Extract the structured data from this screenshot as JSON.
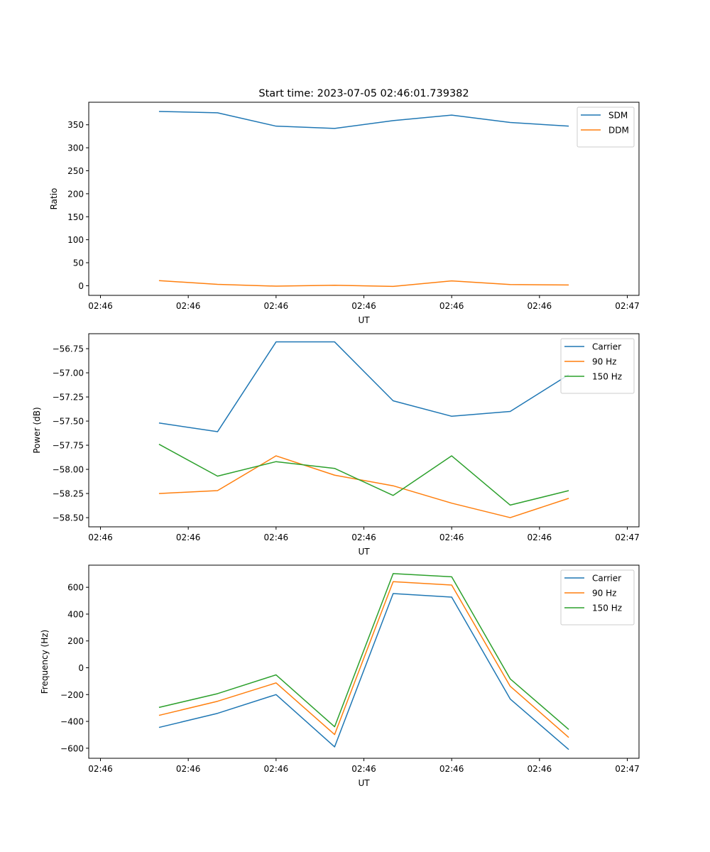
{
  "figure_title": "Start time: 2023-07-05 02:46:01.739382",
  "colors": {
    "blue": "#1f77b4",
    "orange": "#ff7f0e",
    "green": "#2ca02c"
  },
  "chart_data": [
    {
      "type": "line",
      "title": "Start time: 2023-07-05 02:46:01.739382",
      "xlabel": "UT",
      "ylabel": "Ratio",
      "x": [
        1,
        2,
        3,
        4,
        5,
        6,
        7,
        8
      ],
      "xlim": [
        -0.2,
        9.2
      ],
      "xticks": [
        0,
        1.5,
        3,
        4.5,
        6,
        7.5,
        9
      ],
      "xtick_labels": [
        "02:46",
        "02:46",
        "02:46",
        "02:46",
        "02:46",
        "02:46",
        "02:47"
      ],
      "ylim": [
        -21,
        399
      ],
      "yticks": [
        0,
        50,
        100,
        150,
        200,
        250,
        300,
        350
      ],
      "ytick_labels": [
        "0",
        "50",
        "100",
        "150",
        "200",
        "250",
        "300",
        "350"
      ],
      "legend_position": "top-right",
      "series": [
        {
          "name": "SDM",
          "color": "#1f77b4",
          "values": [
            379,
            376,
            347,
            342,
            359,
            371,
            355,
            347
          ]
        },
        {
          "name": "DDM",
          "color": "#ff7f0e",
          "values": [
            11,
            3,
            -1,
            1,
            -1.5,
            10.5,
            2.5,
            1.5
          ]
        }
      ]
    },
    {
      "type": "line",
      "title": "",
      "xlabel": "UT",
      "ylabel": "Power (dB)",
      "x": [
        1,
        2,
        3,
        4,
        5,
        6,
        7,
        8
      ],
      "xlim": [
        -0.2,
        9.2
      ],
      "xticks": [
        0,
        1.5,
        3,
        4.5,
        6,
        7.5,
        9
      ],
      "xtick_labels": [
        "02:46",
        "02:46",
        "02:46",
        "02:46",
        "02:46",
        "02:46",
        "02:47"
      ],
      "ylim": [
        -58.595,
        -56.595
      ],
      "yticks": [
        -58.5,
        -58.25,
        -58.0,
        -57.75,
        -57.5,
        -57.25,
        -57.0,
        -56.75
      ],
      "ytick_labels": [
        "−58.50",
        "−58.25",
        "−58.00",
        "−57.75",
        "−57.50",
        "−57.25",
        "−57.00",
        "−56.75"
      ],
      "legend_position": "top-right",
      "series": [
        {
          "name": "Carrier",
          "color": "#1f77b4",
          "values": [
            -57.52,
            -57.61,
            -56.68,
            -56.68,
            -57.29,
            -57.45,
            -57.4,
            -57.02
          ]
        },
        {
          "name": "90 Hz",
          "color": "#ff7f0e",
          "values": [
            -58.25,
            -58.22,
            -57.86,
            -58.06,
            -58.17,
            -58.35,
            -58.5,
            -58.3
          ]
        },
        {
          "name": "150 Hz",
          "color": "#2ca02c",
          "values": [
            -57.74,
            -58.07,
            -57.92,
            -57.99,
            -58.27,
            -57.86,
            -58.37,
            -58.22
          ]
        }
      ]
    },
    {
      "type": "line",
      "title": "",
      "xlabel": "UT",
      "ylabel": "Frequency (Hz)",
      "x": [
        1,
        2,
        3,
        4,
        5,
        6,
        7,
        8
      ],
      "xlim": [
        -0.2,
        9.2
      ],
      "xticks": [
        0,
        1.5,
        3,
        4.5,
        6,
        7.5,
        9
      ],
      "xtick_labels": [
        "02:46",
        "02:46",
        "02:46",
        "02:46",
        "02:46",
        "02:46",
        "02:47"
      ],
      "ylim": [
        -675,
        765
      ],
      "yticks": [
        -600,
        -400,
        -200,
        0,
        200,
        400,
        600
      ],
      "ytick_labels": [
        "−600",
        "−400",
        "−200",
        "0",
        "200",
        "400",
        "600"
      ],
      "legend_position": "top-right",
      "series": [
        {
          "name": "Carrier",
          "color": "#1f77b4",
          "values": [
            -445,
            -340,
            -200,
            -590,
            553,
            527,
            -233,
            -610
          ]
        },
        {
          "name": "90 Hz",
          "color": "#ff7f0e",
          "values": [
            -355,
            -250,
            -113,
            -498,
            642,
            617,
            -138,
            -520
          ]
        },
        {
          "name": "150 Hz",
          "color": "#2ca02c",
          "values": [
            -296,
            -193,
            -53,
            -440,
            702,
            678,
            -83,
            -460
          ]
        }
      ]
    }
  ]
}
